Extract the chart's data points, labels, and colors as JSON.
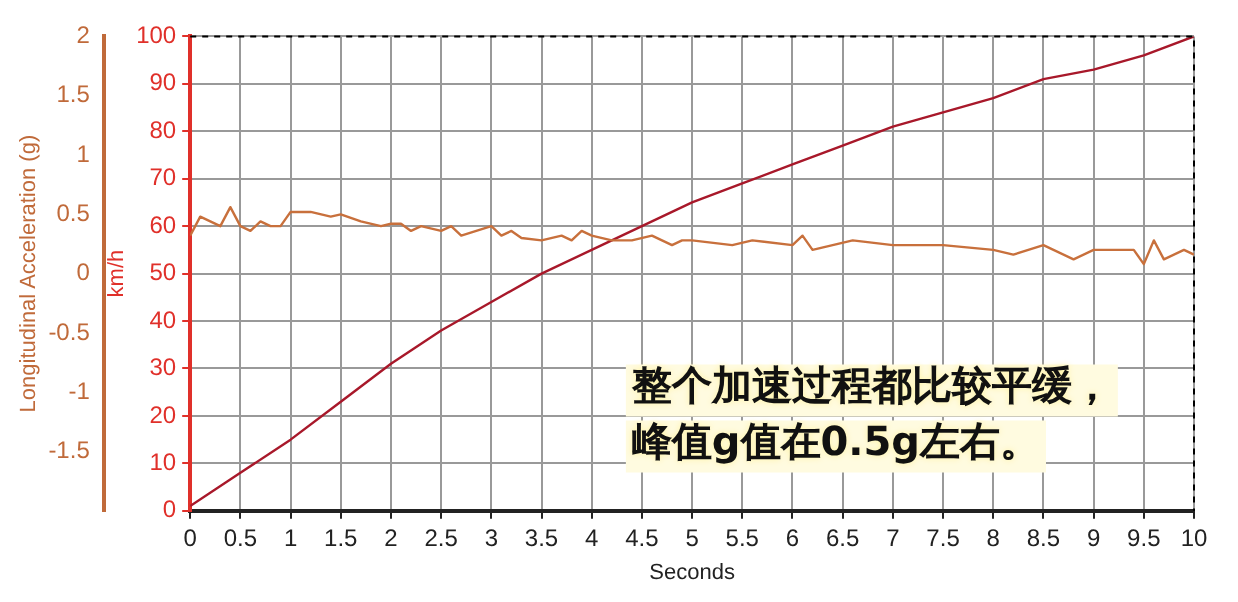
{
  "chart_data": {
    "type": "line",
    "xlabel": "Seconds",
    "ylabel": "Longitudinal Acceleration (g)",
    "y2label": "km/h",
    "xlim": [
      0,
      10
    ],
    "xticks": [
      0,
      0.5,
      1,
      1.5,
      2,
      2.5,
      3,
      3.5,
      4,
      4.5,
      5,
      5.5,
      6,
      6.5,
      7,
      7.5,
      8,
      8.5,
      9,
      9.5,
      10
    ],
    "ylim": [
      -2,
      2
    ],
    "yticks": [
      -1.5,
      -1,
      -0.5,
      0,
      0.5,
      1,
      1.5,
      2
    ],
    "y2lim": [
      0,
      100
    ],
    "y2ticks": [
      0,
      10,
      20,
      30,
      40,
      50,
      60,
      70,
      80,
      90,
      100
    ],
    "grid": true,
    "legend": false,
    "marker": "none",
    "line_style": "solid",
    "series": [
      {
        "color": "#c8703c",
        "axis": "y",
        "x": [
          0,
          0.1,
          0.2,
          0.3,
          0.4,
          0.5,
          0.6,
          0.7,
          0.8,
          0.9,
          1.0,
          1.2,
          1.4,
          1.5,
          1.7,
          1.9,
          2.0,
          2.1,
          2.2,
          2.3,
          2.5,
          2.6,
          2.7,
          3.0,
          3.1,
          3.2,
          3.3,
          3.5,
          3.7,
          3.8,
          3.9,
          4.0,
          4.2,
          4.4,
          4.6,
          4.8,
          4.9,
          5.0,
          5.4,
          5.6,
          6.0,
          6.1,
          6.2,
          6.6,
          7.0,
          7.5,
          8.0,
          8.2,
          8.5,
          8.8,
          9.0,
          9.4,
          9.5,
          9.6,
          9.7,
          9.9,
          10
        ],
        "values": [
          0.32,
          0.48,
          0.44,
          0.4,
          0.56,
          0.4,
          0.36,
          0.44,
          0.4,
          0.4,
          0.52,
          0.52,
          0.48,
          0.5,
          0.44,
          0.4,
          0.42,
          0.42,
          0.36,
          0.4,
          0.36,
          0.4,
          0.32,
          0.4,
          0.32,
          0.36,
          0.3,
          0.28,
          0.32,
          0.28,
          0.36,
          0.32,
          0.28,
          0.28,
          0.32,
          0.24,
          0.28,
          0.28,
          0.24,
          0.28,
          0.24,
          0.32,
          0.2,
          0.28,
          0.24,
          0.24,
          0.2,
          0.16,
          0.24,
          0.12,
          0.2,
          0.2,
          0.08,
          0.28,
          0.12,
          0.2,
          0.16
        ]
      },
      {
        "color": "#a8182a",
        "axis": "y2",
        "x": [
          0,
          0.5,
          1,
          1.5,
          2,
          2.5,
          3,
          3.5,
          4,
          4.5,
          5,
          5.5,
          6,
          6.5,
          7,
          7.5,
          8,
          8.5,
          9,
          9.5,
          10
        ],
        "values": [
          1,
          8,
          15,
          23,
          31,
          38,
          44,
          50,
          55,
          60,
          65,
          69,
          73,
          77,
          81,
          84,
          87,
          91,
          93,
          96,
          100
        ]
      }
    ],
    "annotations": [
      "整个加速过程都比较平缓，",
      "峰值g值在0.5g左右。"
    ]
  }
}
